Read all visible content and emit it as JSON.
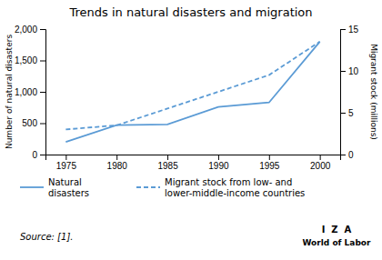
{
  "chart_data": {
    "type": "line",
    "title": "Trends in natural disasters and migration",
    "x": [
      1975,
      1980,
      1985,
      1990,
      1995,
      2000
    ],
    "series": [
      {
        "name": "Natural\ndisasters",
        "color": "#5b9bd5",
        "line_style": "solid",
        "values": [
          200,
          470,
          480,
          760,
          830,
          1800
        ]
      },
      {
        "name": "Migrant stock from low- and\nlower-middle-income countries",
        "color": "#5b9bd5",
        "line_style": "dashed",
        "axis": "y2",
        "values": [
          3.0,
          3.5,
          5.5,
          7.5,
          9.5,
          13.5
        ]
      }
    ],
    "xlim": [
      1973,
      2002
    ],
    "xticks": [
      1975,
      1980,
      1985,
      1990,
      1995,
      2000
    ],
    "ylim": [
      0,
      2000
    ],
    "yticks": [
      0,
      500,
      {
        "value": 1000,
        "label": "1,000"
      },
      {
        "value": 1500,
        "label": "1,500"
      },
      {
        "value": 2000,
        "label": "2,000"
      }
    ],
    "y2lim": [
      0,
      15
    ],
    "y2ticks": [
      0,
      5,
      10,
      15
    ],
    "y_label": "Number of natural disasters",
    "y2_label": "Migrant stock (millions)",
    "annotations": [
      "Source: [1].",
      "I  Z  A",
      "World of Labor"
    ],
    "grid": false
  }
}
